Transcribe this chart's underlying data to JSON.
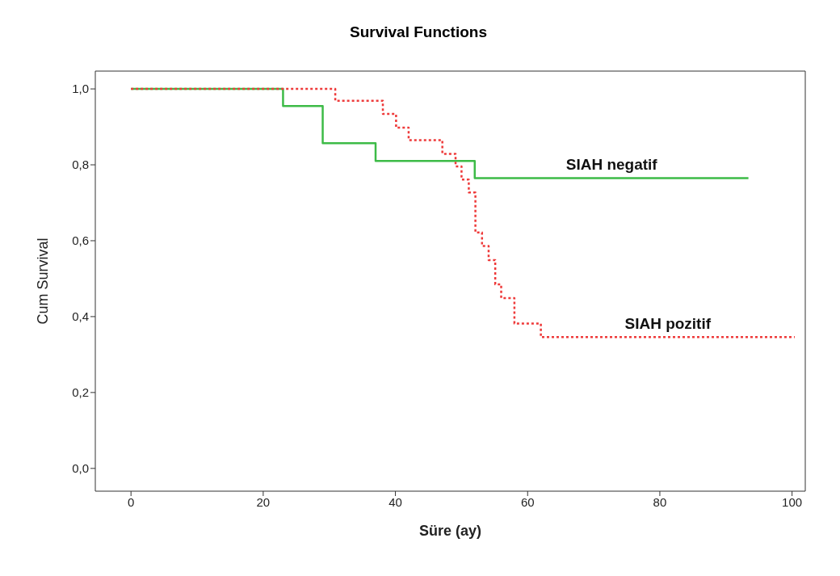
{
  "chart_data": {
    "type": "step",
    "title": "Survival Functions",
    "xlabel": "Süre (ay)",
    "ylabel": "Cum Survival",
    "xlim": [
      -5.4,
      102
    ],
    "xticks": [
      0,
      20,
      40,
      60,
      80,
      100
    ],
    "ylim": [
      -0.06,
      1.047
    ],
    "yticks": [
      {
        "value": 0,
        "label": "0,0"
      },
      {
        "value": 0.2,
        "label": "0,2"
      },
      {
        "value": 0.4,
        "label": "0,4"
      },
      {
        "value": 0.6,
        "label": "0,6"
      },
      {
        "value": 0.8,
        "label": "0,8"
      },
      {
        "value": 1,
        "label": "1,0"
      }
    ],
    "grid": false,
    "legend": false,
    "marker": "none",
    "series": [
      {
        "name": "SIAH negatif",
        "color": "#3dbb47",
        "line_style": "solid",
        "x": [
          0,
          23,
          29,
          37,
          52,
          93.4
        ],
        "values": [
          1,
          0.955,
          0.857,
          0.81,
          0.765,
          0.765
        ]
      },
      {
        "name": "SIAH pozitif",
        "color": "#ee3a3a",
        "line_style": "dotted",
        "x": [
          0,
          30.9,
          38.1,
          40.1,
          42,
          47.1,
          49.1,
          50,
          51.1,
          52.1,
          53.1,
          54.1,
          55.1,
          56,
          58,
          62,
          100.4
        ],
        "values": [
          1,
          0.969,
          0.934,
          0.898,
          0.865,
          0.829,
          0.796,
          0.761,
          0.727,
          0.622,
          0.586,
          0.549,
          0.485,
          0.449,
          0.382,
          0.346,
          0.346
        ]
      }
    ]
  }
}
